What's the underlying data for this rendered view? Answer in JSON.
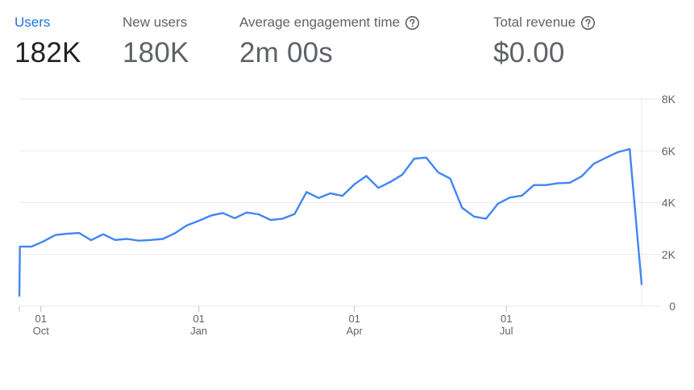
{
  "metrics": [
    {
      "label": "Users",
      "value": "182K",
      "active": true,
      "help": false
    },
    {
      "label": "New users",
      "value": "180K",
      "active": false,
      "help": false
    },
    {
      "label": "Average engagement time",
      "value": "2m 00s",
      "active": false,
      "help": true
    },
    {
      "label": "Total revenue",
      "value": "$0.00",
      "active": false,
      "help": true
    }
  ],
  "colors": {
    "accent": "#1a73e8",
    "line": "#4285f4",
    "grid": "#e8eaed",
    "axis_text": "#5f6368",
    "value_dim": "#5f6368",
    "value_active": "#202124"
  },
  "chart_data": {
    "type": "line",
    "title": "",
    "xlabel": "",
    "ylabel": "",
    "ylim": [
      0,
      8000
    ],
    "y_ticks": [
      {
        "value": 0,
        "label": "0"
      },
      {
        "value": 2000,
        "label": "2K"
      },
      {
        "value": 4000,
        "label": "4K"
      },
      {
        "value": 6000,
        "label": "6K"
      },
      {
        "value": 8000,
        "label": "8K"
      }
    ],
    "x_ticks": [
      {
        "week": 1.8,
        "day": "01",
        "month": "Oct"
      },
      {
        "week": 15,
        "day": "01",
        "month": "Jan"
      },
      {
        "week": 28,
        "day": "01",
        "month": "Apr"
      },
      {
        "week": 40.7,
        "day": "01",
        "month": "Jul"
      }
    ],
    "grid": true,
    "legend": "none",
    "series": [
      {
        "values": [
          {
            "x": 0,
            "y": 400
          },
          {
            "x": 0.05,
            "y": 2300
          },
          {
            "x": 1,
            "y": 2300
          },
          {
            "x": 2,
            "y": 2500
          },
          {
            "x": 3,
            "y": 2750
          },
          {
            "x": 4,
            "y": 2800
          },
          {
            "x": 5,
            "y": 2830
          },
          {
            "x": 6,
            "y": 2550
          },
          {
            "x": 7,
            "y": 2780
          },
          {
            "x": 8,
            "y": 2560
          },
          {
            "x": 9,
            "y": 2600
          },
          {
            "x": 10,
            "y": 2530
          },
          {
            "x": 11,
            "y": 2560
          },
          {
            "x": 12,
            "y": 2600
          },
          {
            "x": 13,
            "y": 2820
          },
          {
            "x": 14,
            "y": 3120
          },
          {
            "x": 15,
            "y": 3300
          },
          {
            "x": 16,
            "y": 3500
          },
          {
            "x": 17,
            "y": 3600
          },
          {
            "x": 18,
            "y": 3400
          },
          {
            "x": 19,
            "y": 3620
          },
          {
            "x": 20,
            "y": 3550
          },
          {
            "x": 21,
            "y": 3330
          },
          {
            "x": 22,
            "y": 3380
          },
          {
            "x": 23,
            "y": 3560
          },
          {
            "x": 24,
            "y": 4410
          },
          {
            "x": 25,
            "y": 4180
          },
          {
            "x": 26,
            "y": 4360
          },
          {
            "x": 27,
            "y": 4260
          },
          {
            "x": 28,
            "y": 4710
          },
          {
            "x": 29,
            "y": 5030
          },
          {
            "x": 30,
            "y": 4570
          },
          {
            "x": 31,
            "y": 4800
          },
          {
            "x": 32,
            "y": 5080
          },
          {
            "x": 33,
            "y": 5700
          },
          {
            "x": 34,
            "y": 5740
          },
          {
            "x": 35,
            "y": 5170
          },
          {
            "x": 36,
            "y": 4930
          },
          {
            "x": 37,
            "y": 3800
          },
          {
            "x": 38,
            "y": 3460
          },
          {
            "x": 39,
            "y": 3380
          },
          {
            "x": 40,
            "y": 3960
          },
          {
            "x": 41,
            "y": 4200
          },
          {
            "x": 42,
            "y": 4270
          },
          {
            "x": 43,
            "y": 4680
          },
          {
            "x": 44,
            "y": 4680
          },
          {
            "x": 45,
            "y": 4750
          },
          {
            "x": 46,
            "y": 4770
          },
          {
            "x": 47,
            "y": 5020
          },
          {
            "x": 48,
            "y": 5500
          },
          {
            "x": 49,
            "y": 5730
          },
          {
            "x": 50,
            "y": 5950
          },
          {
            "x": 51,
            "y": 6070
          },
          {
            "x": 52,
            "y": 850
          }
        ]
      }
    ]
  }
}
